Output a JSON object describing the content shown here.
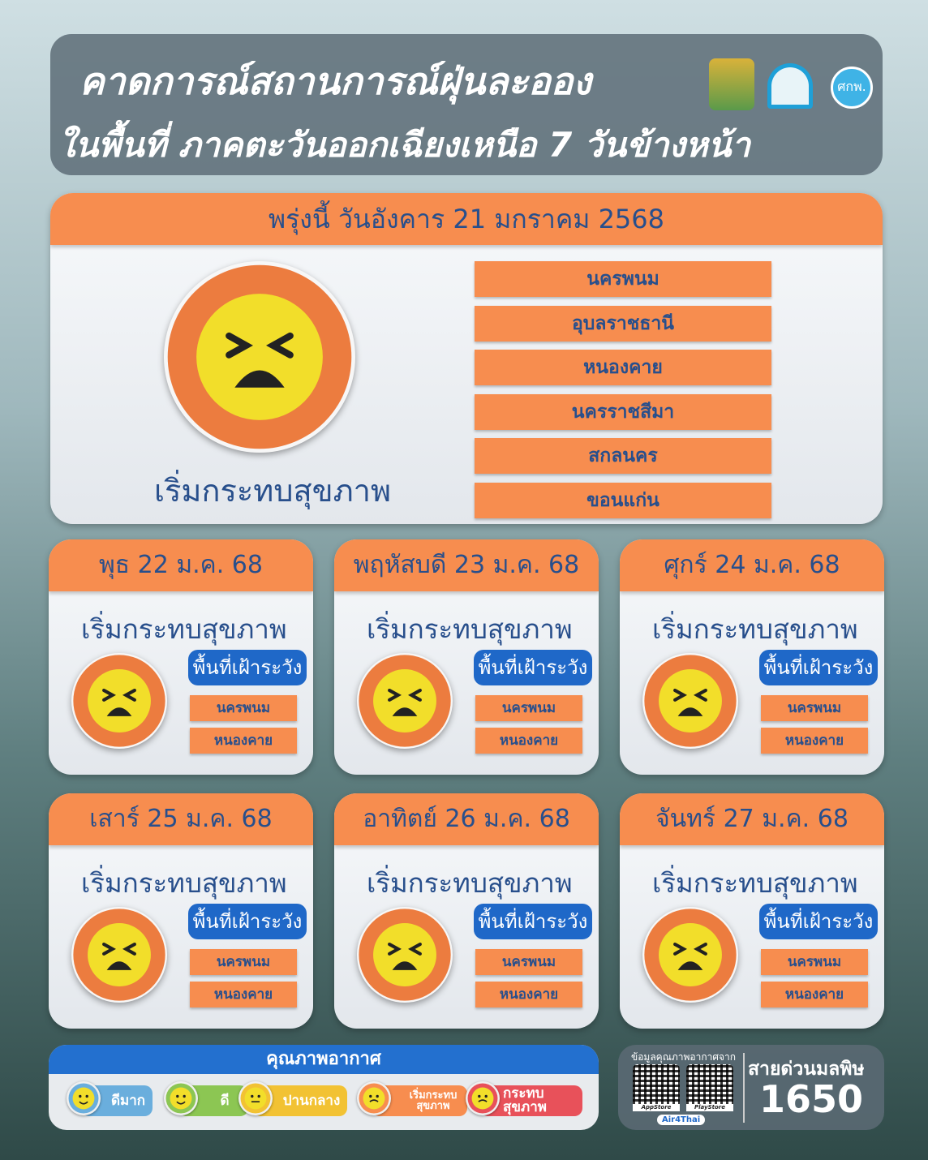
{
  "header": {
    "title_line1": "คาดการณ์สถานการณ์ฝุ่นละออง",
    "title_line2": "ในพื้นที่ ภาคตะวันออกเฉียงเหนือ 7 วันข้างหน้า",
    "logos": [
      "provincial-seal",
      "ห pollution-control-department",
      "ศกพ."
    ]
  },
  "tomorrow": {
    "date": "พรุ่งนี้ วันอังคาร 21 มกราคม 2568",
    "status": "เริ่มกระทบสุขภาพ",
    "provinces": [
      "นครพนม",
      "อุบลราชธานี",
      "หนองคาย",
      "นครราชสีมา",
      "สกลนคร",
      "ขอนแก่น"
    ]
  },
  "days": [
    {
      "date": "พุธ 22 ม.ค. 68",
      "status": "เริ่มกระทบสุขภาพ",
      "watch": "พื้นที่เฝ้าระวัง",
      "provinces": [
        "นครพนม",
        "หนองคาย"
      ]
    },
    {
      "date": "พฤหัสบดี 23 ม.ค. 68",
      "status": "เริ่มกระทบสุขภาพ",
      "watch": "พื้นที่เฝ้าระวัง",
      "provinces": [
        "นครพนม",
        "หนองคาย"
      ]
    },
    {
      "date": "ศุกร์ 24 ม.ค. 68",
      "status": "เริ่มกระทบสุขภาพ",
      "watch": "พื้นที่เฝ้าระวัง",
      "provinces": [
        "นครพนม",
        "หนองคาย"
      ]
    },
    {
      "date": "เสาร์ 25 ม.ค. 68",
      "status": "เริ่มกระทบสุขภาพ",
      "watch": "พื้นที่เฝ้าระวัง",
      "provinces": [
        "นครพนม",
        "หนองคาย"
      ]
    },
    {
      "date": "อาทิตย์ 26 ม.ค. 68",
      "status": "เริ่มกระทบสุขภาพ",
      "watch": "พื้นที่เฝ้าระวัง",
      "provinces": [
        "นครพนม",
        "หนองคาย"
      ]
    },
    {
      "date": "จันทร์ 27 ม.ค. 68",
      "status": "เริ่มกระทบสุขภาพ",
      "watch": "พื้นที่เฝ้าระวัง",
      "provinces": [
        "นครพนม",
        "หนองคาย"
      ]
    }
  ],
  "legend": {
    "title": "คุณภาพอากาศ",
    "items": [
      {
        "label": "ดีมาก",
        "color": "#6aaedd"
      },
      {
        "label": "ดี",
        "color": "#8cc653"
      },
      {
        "label": "ปานกลาง",
        "color": "#f2c233"
      },
      {
        "label": "เริ่มกระทบสุขภาพ",
        "color": "#f78d4f"
      },
      {
        "label": "กระทบสุขภาพ",
        "color": "#e8515a"
      }
    ]
  },
  "hotline": {
    "source_label": "ข้อมูลคุณภาพอากาศจาก",
    "app": "Air4Thai",
    "qr_labels": [
      "AppStore",
      "PlayStore"
    ],
    "title": "สายด่วนมลพิษ",
    "number": "1650"
  },
  "colors": {
    "accent_orange": "#f78d4f",
    "text_blue": "#284f8c",
    "watch_blue": "#1f68c8"
  }
}
